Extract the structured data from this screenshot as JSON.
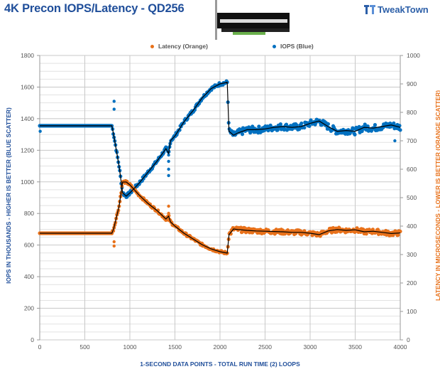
{
  "header": {
    "title": "4K Precon IOPS/Latency - QD256",
    "brand": "TweakTown"
  },
  "legend": {
    "latency_label": "Latency (Orange)",
    "iops_label": "IOPS (Blue)"
  },
  "axes": {
    "y_left_label": "IOPS IN THOUSANDS - HIGHER IS BETTER (BLUE SCATTER)",
    "y_right_label": "LATENCY IN MICROSECONDS - LOWER IS BETTER (ORANGE SCATTER)",
    "x_label": "1-SECOND  DATA POINTS - TOTAL RUN TIME (2) LOOPS"
  },
  "colors": {
    "iops": "#0070c0",
    "latency": "#e8711a",
    "trend": "#000000",
    "title": "#1f4e9a",
    "grid_major": "#c8c8c8",
    "grid_minor": "#e2e2e2"
  },
  "chart_data": {
    "type": "scatter",
    "title": "4K Precon IOPS/Latency - QD256",
    "xlabel": "1-SECOND  DATA POINTS - TOTAL RUN TIME (2) LOOPS",
    "ylabel": "IOPS IN THOUSANDS - HIGHER IS BETTER (BLUE SCATTER)",
    "y2label": "LATENCY IN MICROSECONDS - LOWER IS BETTER (ORANGE SCATTER)",
    "xlim": [
      0,
      4000
    ],
    "ylim": [
      0,
      1800
    ],
    "y2lim": [
      0,
      1000
    ],
    "x_ticks": [
      0,
      500,
      1000,
      1500,
      2000,
      2500,
      3000,
      3500,
      4000
    ],
    "y_ticks": [
      0,
      200,
      400,
      600,
      800,
      1000,
      1200,
      1400,
      1600,
      1800
    ],
    "y2_ticks": [
      0,
      100,
      200,
      300,
      400,
      500,
      600,
      700,
      800,
      900,
      1000
    ],
    "grid": true,
    "legend_position": "top",
    "series": [
      {
        "name": "IOPS (Blue)",
        "axis": "left",
        "color": "#0070c0",
        "x": [
          0,
          200,
          400,
          600,
          800,
          820,
          880,
          920,
          960,
          1000,
          1100,
          1200,
          1300,
          1400,
          1430,
          1450,
          1500,
          1600,
          1700,
          1800,
          1900,
          2000,
          2080,
          2100,
          2150,
          2200,
          2300,
          2400,
          2500,
          2600,
          2700,
          2800,
          2900,
          3000,
          3100,
          3200,
          3300,
          3400,
          3500,
          3600,
          3700,
          3800,
          3900,
          4000
        ],
        "values": [
          1355,
          1355,
          1355,
          1355,
          1355,
          1300,
          1100,
          930,
          910,
          930,
          990,
          1060,
          1130,
          1210,
          1180,
          1260,
          1290,
          1380,
          1450,
          1530,
          1590,
          1620,
          1630,
          1320,
          1295,
          1310,
          1330,
          1330,
          1335,
          1345,
          1350,
          1345,
          1350,
          1370,
          1385,
          1350,
          1320,
          1325,
          1320,
          1345,
          1340,
          1350,
          1360,
          1345
        ]
      },
      {
        "name": "Latency (Orange)",
        "axis": "right",
        "color": "#e8711a",
        "x": [
          0,
          200,
          400,
          600,
          800,
          820,
          880,
          920,
          960,
          1000,
          1100,
          1200,
          1300,
          1400,
          1430,
          1450,
          1500,
          1600,
          1700,
          1800,
          1900,
          2000,
          2080,
          2100,
          2150,
          2200,
          2300,
          2400,
          2500,
          2600,
          2700,
          2800,
          2900,
          3000,
          3100,
          3200,
          3300,
          3400,
          3500,
          3600,
          3700,
          3800,
          3900,
          4000
        ],
        "values": [
          375,
          375,
          375,
          375,
          375,
          390,
          470,
          555,
          555,
          545,
          510,
          480,
          455,
          425,
          435,
          415,
          400,
          375,
          355,
          335,
          320,
          310,
          305,
          370,
          390,
          388,
          385,
          383,
          382,
          381,
          380,
          378,
          378,
          375,
          370,
          383,
          388,
          385,
          387,
          380,
          382,
          378,
          374,
          376
        ]
      }
    ],
    "annotations": [
      "Black moving-average trend lines overlay both scatter series"
    ]
  }
}
